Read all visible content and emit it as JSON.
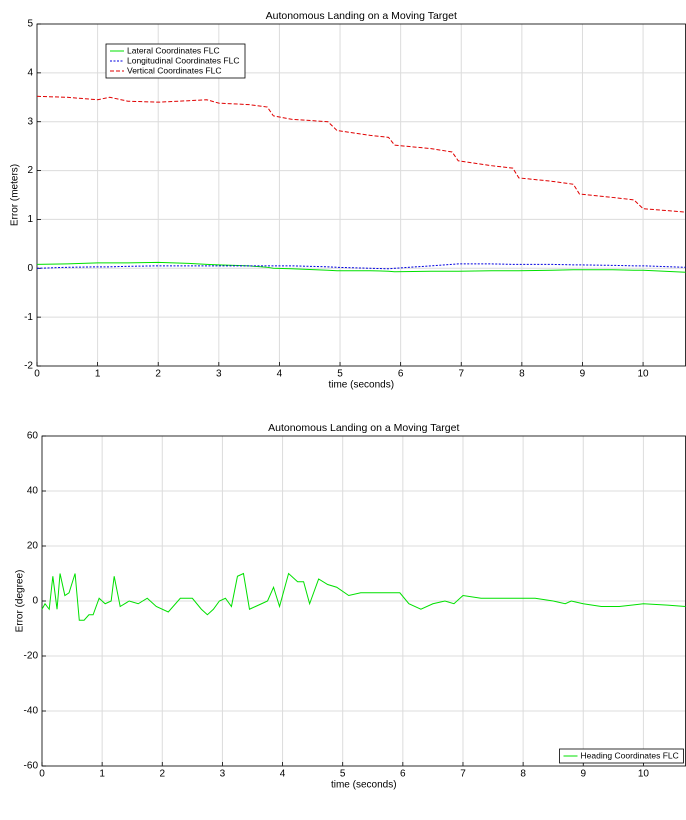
{
  "chart_data": [
    {
      "type": "line",
      "title": "Autonomous Landing on a Moving Target",
      "xlabel": "time (seconds)",
      "ylabel": "Error (meters)",
      "x": [
        0,
        0.5,
        1,
        1.2,
        1.5,
        2,
        2.5,
        2.8,
        3,
        3.5,
        3.8,
        3.9,
        4.2,
        4.8,
        4.95,
        5.5,
        5.8,
        5.9,
        6.5,
        6.85,
        6.95,
        7.5,
        7.85,
        7.95,
        8.5,
        8.85,
        8.95,
        9.5,
        9.85,
        10,
        10.7
      ],
      "series": [
        {
          "name": "Lateral Coordinates FLC",
          "color": "#00e000",
          "linestyle": "solid",
          "values": [
            0.08,
            0.09,
            0.11,
            0.11,
            0.11,
            0.12,
            0.1,
            0.08,
            0.07,
            0.05,
            0.02,
            0.0,
            -0.01,
            -0.04,
            -0.05,
            -0.05,
            -0.06,
            -0.07,
            -0.06,
            -0.06,
            -0.06,
            -0.05,
            -0.05,
            -0.05,
            -0.04,
            -0.03,
            -0.03,
            -0.03,
            -0.04,
            -0.04,
            -0.08
          ]
        },
        {
          "name": "Longitudinal Coordinates FLC",
          "color": "#0000e0",
          "linestyle": "dotted",
          "values": [
            0.0,
            0.02,
            0.03,
            0.03,
            0.04,
            0.05,
            0.05,
            0.05,
            0.05,
            0.05,
            0.05,
            0.05,
            0.05,
            0.03,
            0.02,
            0.0,
            -0.01,
            0.0,
            0.05,
            0.08,
            0.09,
            0.09,
            0.08,
            0.08,
            0.08,
            0.07,
            0.07,
            0.06,
            0.05,
            0.05,
            0.02
          ]
        },
        {
          "name": "Vertical Coordinates FLC",
          "color": "#e00000",
          "linestyle": "dashed",
          "values": [
            3.52,
            3.5,
            3.45,
            3.5,
            3.42,
            3.4,
            3.43,
            3.45,
            3.38,
            3.35,
            3.3,
            3.12,
            3.05,
            3.0,
            2.82,
            2.72,
            2.68,
            2.52,
            2.45,
            2.38,
            2.2,
            2.1,
            2.05,
            1.85,
            1.78,
            1.72,
            1.52,
            1.45,
            1.4,
            1.22,
            1.15
          ]
        }
      ],
      "xlim": [
        0,
        10.7
      ],
      "ylim": [
        -2,
        5
      ],
      "xticks": [
        0,
        1,
        2,
        3,
        4,
        5,
        6,
        7,
        8,
        9,
        10
      ],
      "yticks": [
        -2,
        -1,
        0,
        1,
        2,
        3,
        4,
        5
      ],
      "grid": true,
      "legend": "upper left"
    },
    {
      "type": "line",
      "title": "Autonomous Landing on a Moving Target",
      "xlabel": "time (seconds)",
      "ylabel": "Error (degree)",
      "x": [
        0,
        0.05,
        0.12,
        0.18,
        0.25,
        0.3,
        0.38,
        0.45,
        0.55,
        0.62,
        0.7,
        0.78,
        0.85,
        0.95,
        1.05,
        1.15,
        1.2,
        1.3,
        1.45,
        1.6,
        1.75,
        1.9,
        2.1,
        2.3,
        2.5,
        2.65,
        2.75,
        2.85,
        2.95,
        3.05,
        3.15,
        3.25,
        3.35,
        3.45,
        3.55,
        3.65,
        3.75,
        3.85,
        3.95,
        4.1,
        4.25,
        4.35,
        4.45,
        4.6,
        4.75,
        4.9,
        5.1,
        5.3,
        5.5,
        5.7,
        5.95,
        6.1,
        6.3,
        6.5,
        6.7,
        6.85,
        7.0,
        7.3,
        7.6,
        7.9,
        8.2,
        8.5,
        8.7,
        8.8,
        9.0,
        9.3,
        9.6,
        10.0,
        10.4,
        10.7
      ],
      "series": [
        {
          "name": "Heading Coordinates FLC",
          "color": "#00e000",
          "linestyle": "solid",
          "values": [
            -3,
            -1,
            -3,
            9,
            -3,
            10,
            2,
            3,
            10,
            -7,
            -7,
            -5,
            -5,
            1,
            -1,
            0,
            9,
            -2,
            0,
            -1,
            1,
            -2,
            -4,
            1,
            1,
            -3,
            -5,
            -3,
            0,
            1,
            -2,
            9,
            10,
            -3,
            -2,
            -1,
            0,
            5,
            -2,
            10,
            7,
            7,
            -1,
            8,
            6,
            5,
            2,
            3,
            3,
            3,
            3,
            -1,
            -3,
            -1,
            0,
            -1,
            2,
            1,
            1,
            1,
            1,
            0,
            -1,
            0,
            -1,
            -2,
            -2,
            -1,
            -1.5,
            -2
          ]
        }
      ],
      "xlim": [
        0,
        10.7
      ],
      "ylim": [
        -60,
        60
      ],
      "xticks": [
        0,
        1,
        2,
        3,
        4,
        5,
        6,
        7,
        8,
        9,
        10
      ],
      "yticks": [
        -60,
        -40,
        -20,
        0,
        20,
        40,
        60
      ],
      "grid": true,
      "legend": "lower right"
    }
  ]
}
